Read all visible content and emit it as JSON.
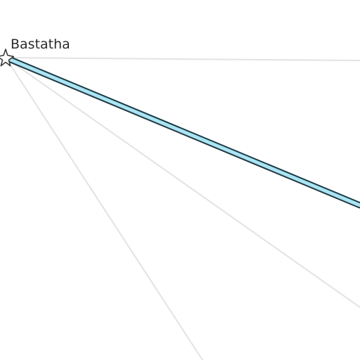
{
  "map": {
    "cities": [
      {
        "name": "Bastatha"
      }
    ],
    "colors": {
      "background": "#ffffff",
      "faint_route": "#e3e3e3",
      "highlight_route_fill": "#a9e4f2",
      "highlight_route_outline": "#1f3a45",
      "marker_fill": "#ffffff",
      "marker_stroke": "#333333",
      "label": "#2b2b2b"
    },
    "icons": {
      "city_marker": "star-icon"
    }
  }
}
